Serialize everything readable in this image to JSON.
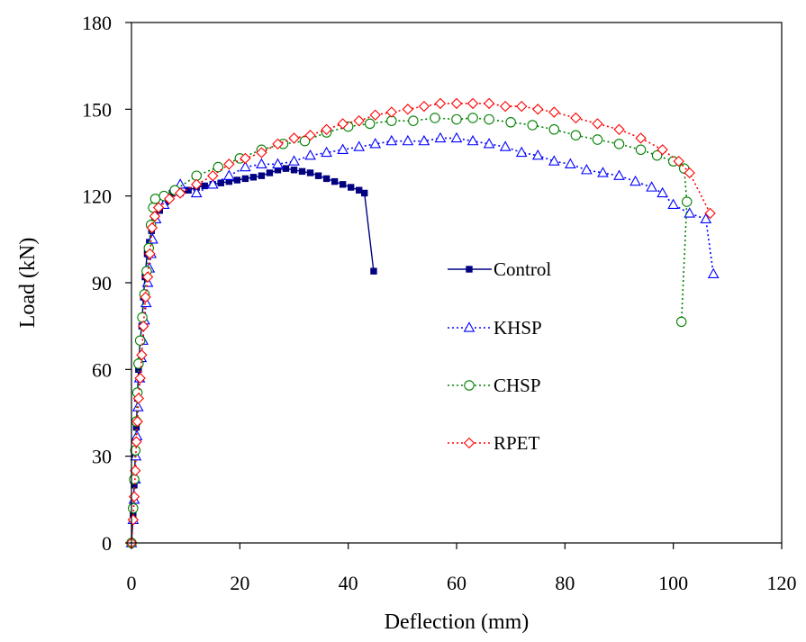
{
  "chart_data": {
    "type": "line",
    "title": "",
    "xlabel": "Deflection (mm)",
    "ylabel": "Load (kN)",
    "xlim": [
      0,
      120
    ],
    "ylim": [
      0,
      180
    ],
    "xticks": [
      "0",
      "20",
      "40",
      "60",
      "80",
      "100",
      "120"
    ],
    "yticks": [
      "0",
      "30",
      "60",
      "90",
      "120",
      "150",
      "180"
    ],
    "grid": false,
    "legend_position": "center-right",
    "series": [
      {
        "name": "Control",
        "color": "#000080",
        "marker": "filled-square",
        "line": "solid",
        "points": [
          [
            0,
            0
          ],
          [
            0.3,
            10
          ],
          [
            0.5,
            20
          ],
          [
            0.7,
            30
          ],
          [
            0.9,
            40
          ],
          [
            1.1,
            50
          ],
          [
            1.3,
            60
          ],
          [
            1.6,
            70
          ],
          [
            1.9,
            75
          ],
          [
            2.2,
            85
          ],
          [
            2.5,
            92
          ],
          [
            2.9,
            100
          ],
          [
            3.3,
            104
          ],
          [
            3.7,
            108
          ],
          [
            4.3,
            112
          ],
          [
            5.2,
            115
          ],
          [
            6.3,
            118
          ],
          [
            7.5,
            121
          ],
          [
            9,
            121
          ],
          [
            10.5,
            122
          ],
          [
            12,
            123
          ],
          [
            13.5,
            123.5
          ],
          [
            15,
            124
          ],
          [
            16.5,
            124.5
          ],
          [
            18,
            125
          ],
          [
            19.5,
            125.5
          ],
          [
            21,
            126
          ],
          [
            22.5,
            126.5
          ],
          [
            24,
            127
          ],
          [
            25.5,
            128
          ],
          [
            27,
            129
          ],
          [
            28.5,
            129.5
          ],
          [
            30,
            129
          ],
          [
            31.5,
            128.5
          ],
          [
            33,
            128
          ],
          [
            34.5,
            127
          ],
          [
            36,
            126
          ],
          [
            37.5,
            125
          ],
          [
            39,
            124
          ],
          [
            40.5,
            123
          ],
          [
            42,
            122
          ],
          [
            43,
            121
          ],
          [
            44.7,
            94
          ]
        ]
      },
      {
        "name": "KHSP",
        "color": "#0000ff",
        "marker": "open-triangle",
        "line": "dotted",
        "points": [
          [
            0,
            0
          ],
          [
            0.3,
            8
          ],
          [
            0.5,
            15
          ],
          [
            0.7,
            22
          ],
          [
            0.8,
            30
          ],
          [
            1,
            37
          ],
          [
            1.2,
            47
          ],
          [
            1.5,
            57
          ],
          [
            1.8,
            64
          ],
          [
            2.1,
            70
          ],
          [
            2.4,
            77
          ],
          [
            2.7,
            83
          ],
          [
            3,
            90
          ],
          [
            3.3,
            95
          ],
          [
            3.6,
            100
          ],
          [
            3.9,
            105
          ],
          [
            4.5,
            112
          ],
          [
            6,
            117
          ],
          [
            9,
            124
          ],
          [
            12,
            121
          ],
          [
            15,
            124
          ],
          [
            18,
            127
          ],
          [
            21,
            130
          ],
          [
            24,
            131
          ],
          [
            27,
            131
          ],
          [
            30,
            132
          ],
          [
            33,
            134
          ],
          [
            36,
            135
          ],
          [
            39,
            136
          ],
          [
            42,
            137
          ],
          [
            45,
            138
          ],
          [
            48,
            139
          ],
          [
            51,
            139
          ],
          [
            54,
            139
          ],
          [
            57,
            140
          ],
          [
            60,
            140
          ],
          [
            63,
            139
          ],
          [
            66,
            138
          ],
          [
            69,
            137
          ],
          [
            72,
            135
          ],
          [
            75,
            134
          ],
          [
            78,
            132
          ],
          [
            81,
            131
          ],
          [
            84,
            129
          ],
          [
            87,
            128
          ],
          [
            90,
            127
          ],
          [
            93,
            125
          ],
          [
            96,
            123
          ],
          [
            98,
            121
          ],
          [
            100,
            117
          ],
          [
            103,
            114
          ],
          [
            106,
            112
          ],
          [
            107.4,
            93
          ]
        ]
      },
      {
        "name": "CHSP",
        "color": "#008000",
        "marker": "open-circle",
        "line": "dotted",
        "points": [
          [
            0,
            0
          ],
          [
            0.3,
            12
          ],
          [
            0.5,
            22
          ],
          [
            0.7,
            32
          ],
          [
            0.9,
            42
          ],
          [
            1.1,
            52
          ],
          [
            1.3,
            62
          ],
          [
            1.6,
            70
          ],
          [
            2,
            78
          ],
          [
            2.4,
            86
          ],
          [
            2.8,
            94
          ],
          [
            3.2,
            102
          ],
          [
            3.6,
            110
          ],
          [
            4,
            116
          ],
          [
            4.4,
            119
          ],
          [
            6,
            120
          ],
          [
            8,
            122
          ],
          [
            12,
            127
          ],
          [
            16,
            130
          ],
          [
            20,
            133
          ],
          [
            24,
            136
          ],
          [
            28,
            138
          ],
          [
            32,
            139
          ],
          [
            36,
            142
          ],
          [
            40,
            144
          ],
          [
            44,
            145
          ],
          [
            48,
            146
          ],
          [
            52,
            146
          ],
          [
            56,
            147
          ],
          [
            60,
            146.5
          ],
          [
            63,
            147
          ],
          [
            66,
            146.5
          ],
          [
            70,
            145.5
          ],
          [
            74,
            144.5
          ],
          [
            78,
            143
          ],
          [
            82,
            141
          ],
          [
            86,
            139.5
          ],
          [
            90,
            138
          ],
          [
            94,
            136
          ],
          [
            97,
            134
          ],
          [
            100,
            132
          ],
          [
            102,
            129.5
          ],
          [
            102.5,
            118
          ],
          [
            101.5,
            76.5
          ]
        ]
      },
      {
        "name": "RPET",
        "color": "#ff0000",
        "marker": "open-diamond",
        "line": "dotted",
        "points": [
          [
            0,
            0
          ],
          [
            0.3,
            8
          ],
          [
            0.5,
            16
          ],
          [
            0.7,
            25
          ],
          [
            0.9,
            35
          ],
          [
            1.1,
            42
          ],
          [
            1.3,
            50
          ],
          [
            1.6,
            57
          ],
          [
            1.9,
            65
          ],
          [
            2.2,
            75
          ],
          [
            2.6,
            85
          ],
          [
            3,
            92
          ],
          [
            3.4,
            100
          ],
          [
            3.8,
            109
          ],
          [
            4.3,
            113
          ],
          [
            5,
            116
          ],
          [
            7,
            119
          ],
          [
            9,
            121
          ],
          [
            12,
            124
          ],
          [
            15,
            127
          ],
          [
            18,
            131
          ],
          [
            21,
            133
          ],
          [
            24,
            135
          ],
          [
            27,
            138
          ],
          [
            30,
            140
          ],
          [
            33,
            141
          ],
          [
            36,
            143
          ],
          [
            39,
            145
          ],
          [
            42,
            146
          ],
          [
            45,
            148
          ],
          [
            48,
            149
          ],
          [
            51,
            150
          ],
          [
            54,
            151
          ],
          [
            57,
            152
          ],
          [
            60,
            152
          ],
          [
            63,
            152
          ],
          [
            66,
            152
          ],
          [
            69,
            151
          ],
          [
            72,
            151
          ],
          [
            75,
            150
          ],
          [
            78,
            149
          ],
          [
            82,
            147
          ],
          [
            86,
            145
          ],
          [
            90,
            143
          ],
          [
            94,
            140
          ],
          [
            98,
            136
          ],
          [
            101,
            132
          ],
          [
            103,
            128
          ],
          [
            106.8,
            114
          ]
        ]
      }
    ]
  }
}
